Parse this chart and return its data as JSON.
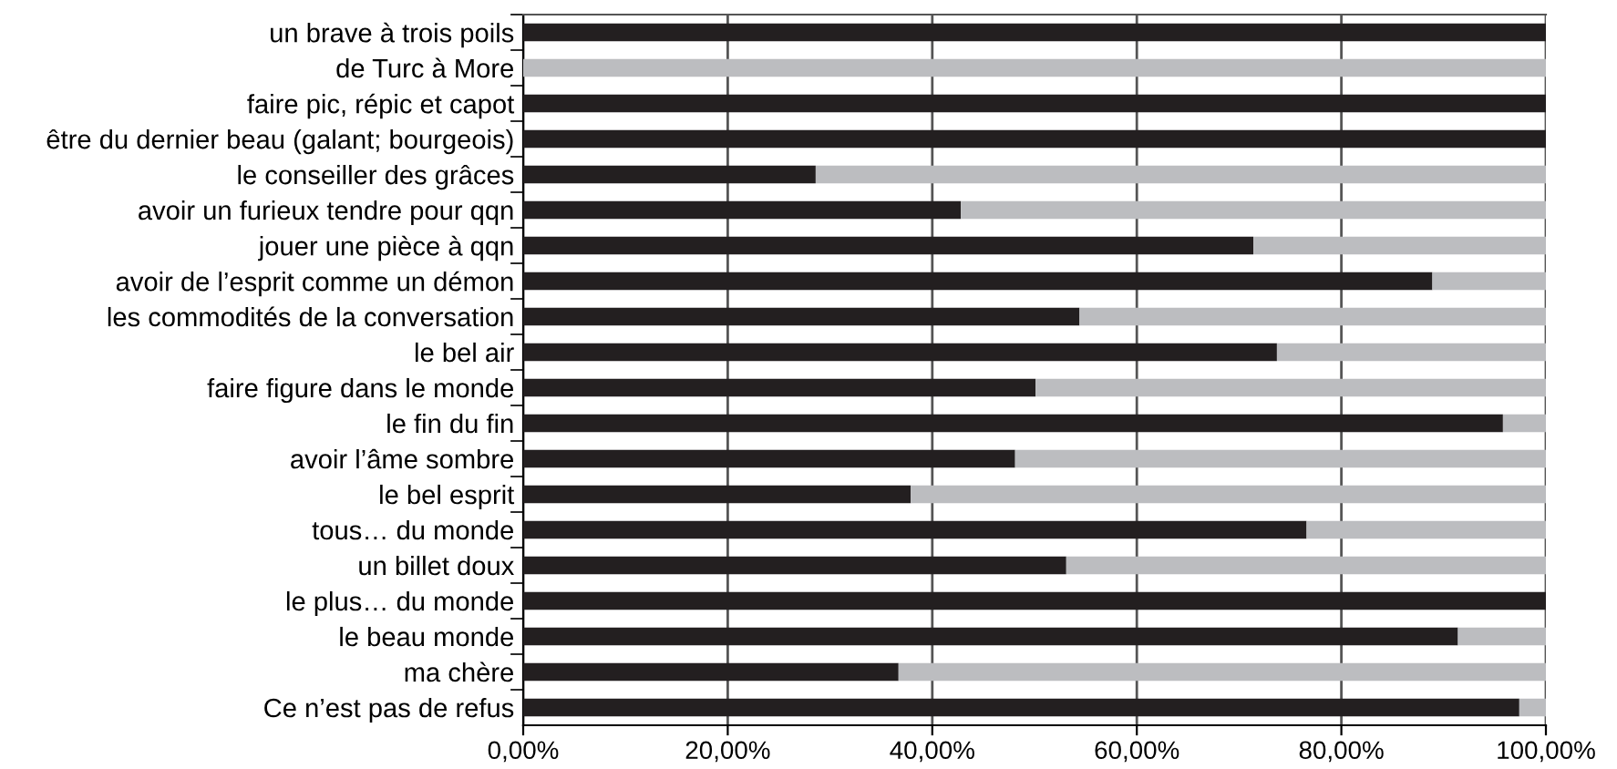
{
  "chart_data": {
    "type": "bar",
    "orientation": "horizontal",
    "stacked": true,
    "categories": [
      "un brave à trois poils",
      "de Turc à More",
      "faire pic, répic et capot",
      "être du dernier beau (galant; bourgeois)",
      "le conseiller des grâces",
      "avoir un furieux tendre pour qqn",
      "jouer une pièce à qqn",
      "avoir de l’esprit comme un démon",
      "les commodités de la conversation",
      "le bel air",
      "faire figure dans le monde",
      "le fin du fin",
      "avoir l’âme sombre",
      "le bel esprit",
      "tous… du monde",
      "un billet doux",
      "le plus… du monde",
      "le beau monde",
      "ma chère",
      "Ce n’est pas de refus"
    ],
    "series": [
      {
        "color": "#231f20",
        "values": [
          100,
          0,
          100,
          100,
          28.6,
          42.8,
          71.4,
          88.9,
          54.4,
          73.7,
          50.1,
          95.8,
          48.1,
          37.9,
          76.6,
          53.1,
          100,
          91.4,
          36.7,
          97.4
        ]
      },
      {
        "color": "#bcbdc0",
        "values": [
          0,
          100,
          0,
          0,
          71.4,
          57.2,
          28.6,
          11.1,
          45.6,
          26.3,
          49.9,
          4.2,
          51.9,
          62.1,
          23.4,
          46.9,
          0,
          8.6,
          63.3,
          2.6
        ]
      }
    ],
    "xlim": [
      0,
      100
    ],
    "xticks": [
      {
        "value": 0,
        "label": "0,00%"
      },
      {
        "value": 20,
        "label": "20,00%"
      },
      {
        "value": 40,
        "label": "40,00%"
      },
      {
        "value": 60,
        "label": "60,00%"
      },
      {
        "value": 80,
        "label": "80,00%"
      },
      {
        "value": 100,
        "label": "100,00%"
      }
    ],
    "grid": "x"
  }
}
